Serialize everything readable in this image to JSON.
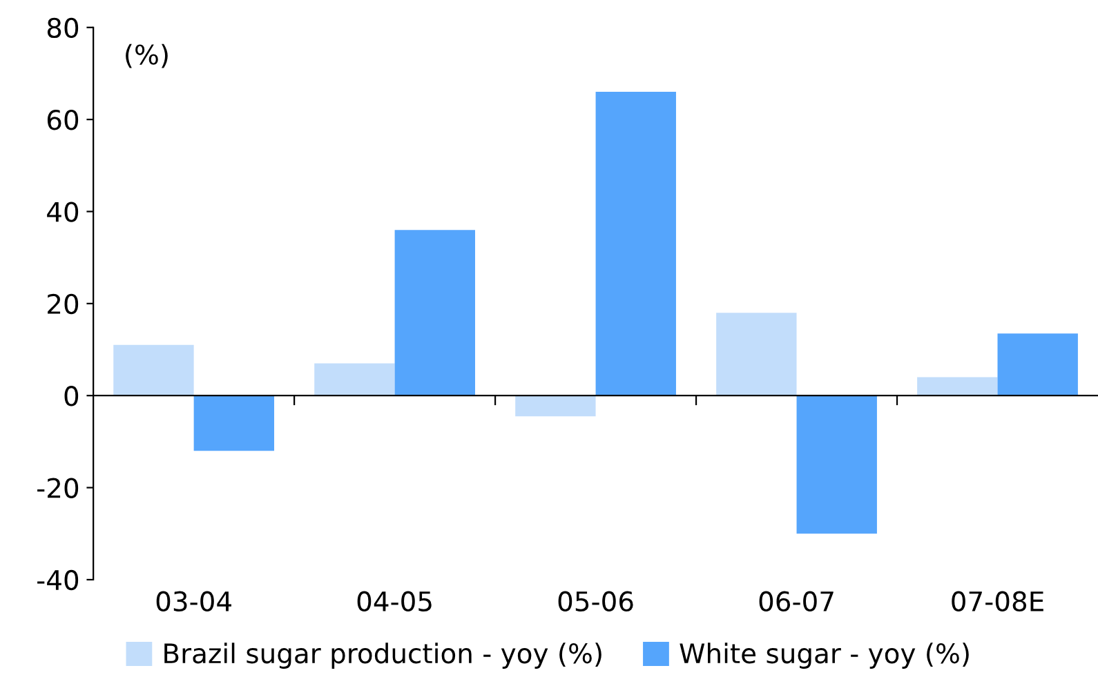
{
  "chart_data": {
    "type": "bar",
    "categories": [
      "03-04",
      "04-05",
      "05-06",
      "06-07",
      "07-08E"
    ],
    "series": [
      {
        "name": "Brazil sugar production - yoy (%)",
        "color": "#c2ddfb",
        "values": [
          11,
          7,
          -4.5,
          18,
          4
        ]
      },
      {
        "name": "White sugar - yoy (%)",
        "color": "#55a5fc",
        "values": [
          -12,
          36,
          66,
          -30,
          13.5
        ]
      }
    ],
    "ylim": [
      -40,
      80
    ],
    "yticks": [
      -40,
      -20,
      0,
      20,
      40,
      60,
      80
    ],
    "annotations": [
      "(%)"
    ],
    "legend": "bottom"
  }
}
